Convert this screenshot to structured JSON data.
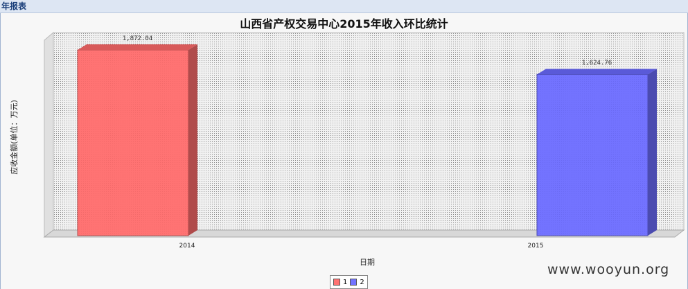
{
  "window": {
    "tab_title": "年报表"
  },
  "chart_data": {
    "type": "bar",
    "title": "山西省产权交易中心2015年收入环比统计",
    "xlabel": "日期",
    "ylabel": "应收金额(单位：万元)",
    "categories": [
      "2014",
      "2015"
    ],
    "series": [
      {
        "name": "1",
        "values": [
          1872.04,
          null
        ],
        "color": "#ff7373"
      },
      {
        "name": "2",
        "values": [
          null,
          1624.76
        ],
        "color": "#7373ff"
      }
    ],
    "data_labels": [
      "1,872.04",
      "1,624.76"
    ],
    "ylim": [
      0,
      1872.04
    ],
    "grid": true,
    "legend_position": "bottom-center"
  },
  "watermark": "www.wooyun.org"
}
